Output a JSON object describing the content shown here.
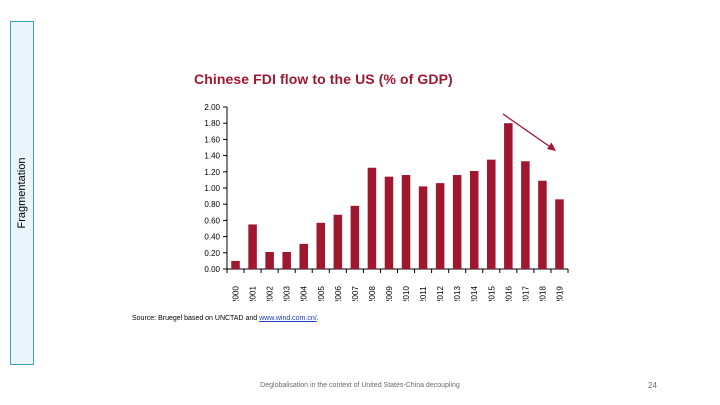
{
  "side_label": "Fragmentation",
  "source": {
    "prefix": "Source: Bruegel based on UNCTAD and ",
    "link_text": "www.wind.com.cn/",
    "suffix": "."
  },
  "footer": "Deglobalisation in the context of United States-China decoupling",
  "page_number": "24",
  "chart_data": {
    "type": "bar",
    "title": "Chinese FDI flow to the US (% of GDP)",
    "categories": [
      "2000",
      "2001",
      "2002",
      "2003",
      "2004",
      "2005",
      "2006",
      "2007",
      "2008",
      "2009",
      "2010",
      "2011",
      "2012",
      "2013",
      "2014",
      "2015",
      "2016",
      "2017",
      "2018",
      "2019"
    ],
    "values": [
      0.1,
      0.55,
      0.21,
      0.21,
      0.31,
      0.57,
      0.67,
      0.78,
      1.25,
      1.14,
      1.16,
      1.02,
      1.06,
      1.16,
      1.21,
      1.35,
      1.8,
      1.33,
      1.09,
      0.86
    ],
    "yticks": [
      "0.00",
      "0.20",
      "0.40",
      "0.60",
      "0.80",
      "1.00",
      "1.20",
      "1.40",
      "1.60",
      "1.80",
      "2.00"
    ],
    "ylim": [
      0,
      2.0
    ],
    "bar_color": "#a01830",
    "annotation": "downward trend arrow from 2016 peak",
    "grid": false,
    "legend": "none"
  }
}
